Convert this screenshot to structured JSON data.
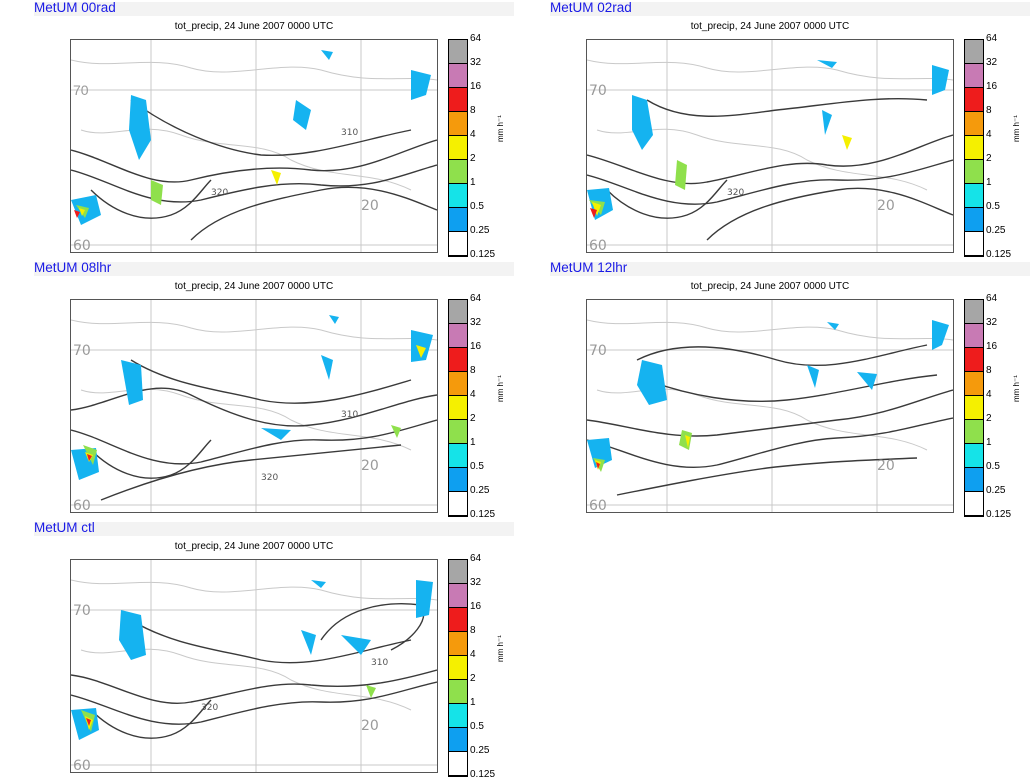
{
  "panels": [
    {
      "id": "00rad",
      "title": "MetUM 00rad",
      "plot_title": "tot_precip, 24 June 2007 0000 UTC"
    },
    {
      "id": "02rad",
      "title": "MetUM 02rad",
      "plot_title": "tot_precip, 24 June 2007 0000 UTC"
    },
    {
      "id": "08lhr",
      "title": "MetUM 08lhr",
      "plot_title": "tot_precip, 24 June 2007 0000 UTC"
    },
    {
      "id": "12lhr",
      "title": "MetUM 12lhr",
      "plot_title": "tot_precip, 24 June 2007 0000 UTC"
    },
    {
      "id": "ctl",
      "title": "MetUM ctl",
      "plot_title": "tot_precip, 24 June 2007 0000 UTC"
    }
  ],
  "colorbar": {
    "labels": [
      "64",
      "32",
      "16",
      "8",
      "4",
      "2",
      "1",
      "0.5",
      "0.25",
      "0.125"
    ],
    "colors": [
      "#a6a6a6",
      "#c87ab4",
      "#ee1c1c",
      "#f59a0c",
      "#f5f000",
      "#8fe04c",
      "#15e3e8",
      "#0e9ff0",
      "#ffffff"
    ],
    "unit": "mm h⁻¹"
  },
  "map_labels": {
    "lat_top": "70",
    "lat_bottom": "60",
    "lon_mid": "20",
    "contour_labels": [
      "310",
      "320"
    ]
  }
}
